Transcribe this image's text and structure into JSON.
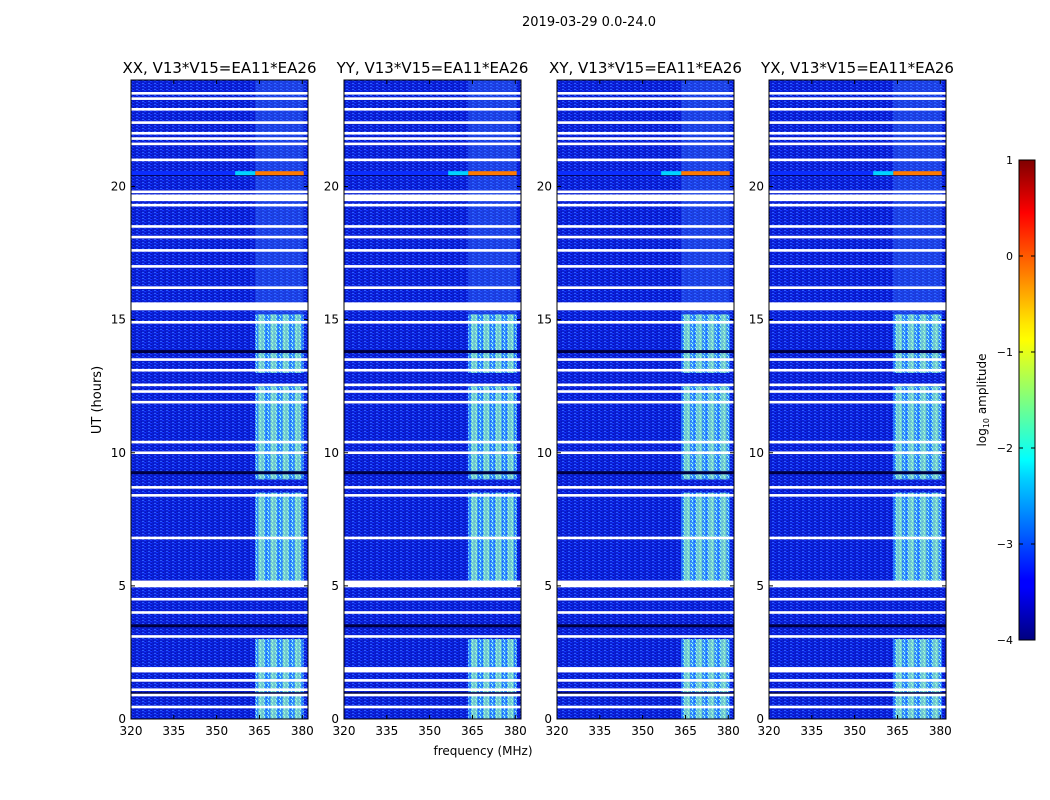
{
  "chart_data": {
    "type": "heatmap",
    "suptitle": "2019-03-29 0.0-24.0",
    "panels": [
      {
        "title": "XX, V13*V15=EA11*EA26"
      },
      {
        "title": "YY, V13*V15=EA11*EA26"
      },
      {
        "title": "XY, V13*V15=EA11*EA26"
      },
      {
        "title": "YX, V13*V15=EA11*EA26"
      }
    ],
    "xlabel": "frequency (MHz)",
    "ylabel": "UT (hours)",
    "xlim": [
      320,
      382
    ],
    "ylim": [
      0,
      24
    ],
    "xticks": [
      320,
      335,
      350,
      365,
      380
    ],
    "xtick_labels": [
      "320",
      "335",
      "350",
      "365",
      "380"
    ],
    "yticks": [
      0,
      5,
      10,
      15,
      20
    ],
    "ytick_labels": [
      "0",
      "5",
      "10",
      "15",
      "20"
    ],
    "rfi_band_mhz": [
      363.5,
      380.5
    ],
    "rfi_bright_intervals_h": [
      [
        0,
        3
      ],
      [
        5,
        8.5
      ],
      [
        9,
        12.5
      ],
      [
        13,
        15.2
      ]
    ],
    "flagged_rows_h": [
      0.45,
      0.9,
      1.1,
      1.45,
      1.85,
      3.1,
      4.0,
      4.5,
      5.0,
      5.15,
      6.8,
      8.4,
      8.7,
      10.0,
      10.4,
      11.9,
      12.3,
      12.55,
      13.1,
      13.5,
      14.9,
      15.45,
      15.6,
      16.2,
      17.0,
      17.6,
      18.1,
      18.5,
      19.3,
      19.5,
      19.8,
      21.0,
      21.6,
      21.8,
      22.0,
      22.4,
      22.9,
      23.3,
      23.5
    ],
    "dark_rows_h": [
      0.95,
      3.5,
      9.25,
      13.8,
      20.45
    ],
    "hot_row_h": 20.5,
    "colorbar": {
      "label": "log10 amplitude",
      "label_base": "log",
      "label_sub": "10",
      "label_rest": " amplitude",
      "range": [
        -4,
        1
      ],
      "ticks": [
        -4,
        -3,
        -2,
        -1,
        0,
        1
      ],
      "tick_labels": [
        "−4",
        "−3",
        "−2",
        "−1",
        "0",
        "1"
      ],
      "colormap": "jet"
    }
  }
}
